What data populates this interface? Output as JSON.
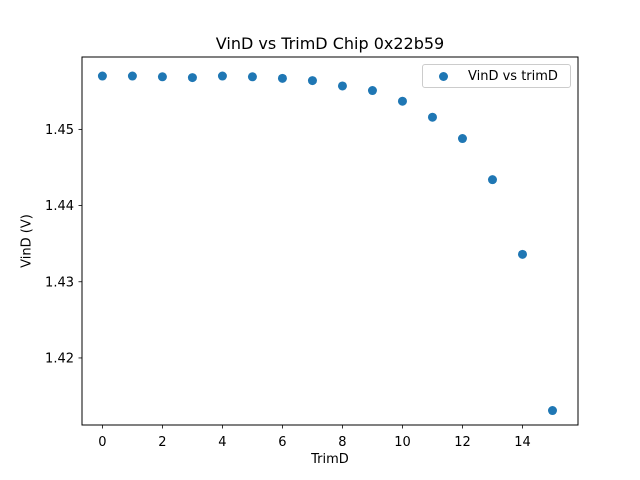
{
  "figure": {
    "background": "#ffffff"
  },
  "chart_data": {
    "type": "scatter",
    "title": "VinD vs TrimD Chip 0x22b59",
    "xlabel": "TrimD",
    "ylabel": "VinD (V)",
    "legend": [
      "VinD vs trimD"
    ],
    "legend_position": "upper right",
    "marker_color": "#1f77b4",
    "grid": false,
    "x": [
      0,
      1,
      2,
      3,
      4,
      5,
      6,
      7,
      8,
      9,
      10,
      11,
      12,
      13,
      14,
      15
    ],
    "y": [
      1.457,
      1.457,
      1.4569,
      1.4568,
      1.457,
      1.4569,
      1.4567,
      1.4564,
      1.4557,
      1.4551,
      1.4537,
      1.4516,
      1.4488,
      1.4434,
      1.4336,
      1.4131
    ],
    "xlim": [
      -0.68,
      15.85
    ],
    "ylim": [
      1.4112,
      1.4595
    ],
    "xticks": [
      0,
      2,
      4,
      6,
      8,
      10,
      12,
      14
    ],
    "yticks": [
      1.42,
      1.43,
      1.44,
      1.45
    ],
    "ytick_labels": [
      "1.42",
      "1.43",
      "1.44",
      "1.45"
    ]
  }
}
